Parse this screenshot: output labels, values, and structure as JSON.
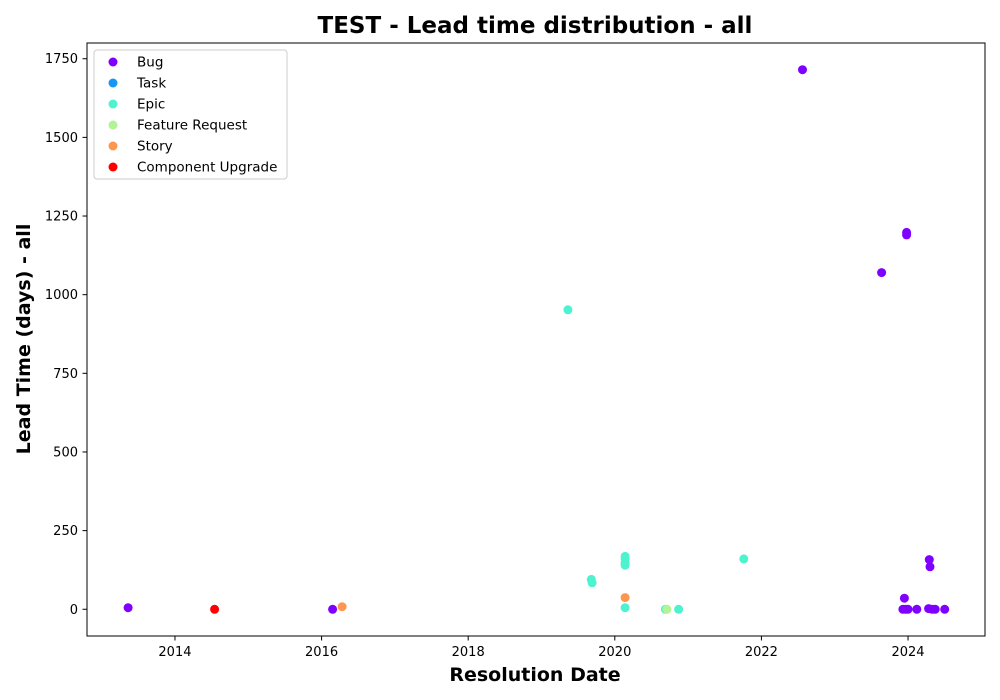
{
  "chart_data": {
    "type": "scatter",
    "title": "TEST - Lead time distribution - all",
    "xlabel": "Resolution Date",
    "ylabel": "Lead Time (days) - all",
    "xlim": [
      2012.8,
      2025.05
    ],
    "ylim": [
      -85,
      1800
    ],
    "x_ticks": [
      2014,
      2016,
      2018,
      2020,
      2022,
      2024
    ],
    "y_ticks": [
      0,
      250,
      500,
      750,
      1000,
      1250,
      1500,
      1750
    ],
    "grid": false,
    "legend_position": "upper-left",
    "series": [
      {
        "name": "Bug",
        "color": "#8000ff",
        "points": [
          [
            2013.36,
            5
          ],
          [
            2016.15,
            0
          ],
          [
            2022.56,
            1715
          ],
          [
            2023.64,
            1070
          ],
          [
            2023.98,
            1190
          ],
          [
            2023.98,
            1198
          ],
          [
            2023.95,
            35
          ],
          [
            2023.93,
            0
          ],
          [
            2023.97,
            0
          ],
          [
            2024.0,
            0
          ],
          [
            2024.12,
            0
          ],
          [
            2024.29,
            158
          ],
          [
            2024.3,
            135
          ],
          [
            2024.28,
            2
          ],
          [
            2024.33,
            0
          ],
          [
            2024.37,
            0
          ],
          [
            2024.5,
            0
          ]
        ]
      },
      {
        "name": "Task",
        "color": "#1996f3",
        "points": []
      },
      {
        "name": "Epic",
        "color": "#4df3ce",
        "points": [
          [
            2019.36,
            952
          ],
          [
            2019.68,
            95
          ],
          [
            2019.69,
            84
          ],
          [
            2020.14,
            168
          ],
          [
            2020.14,
            160
          ],
          [
            2020.14,
            147
          ],
          [
            2020.14,
            140
          ],
          [
            2020.14,
            5
          ],
          [
            2020.69,
            0
          ],
          [
            2020.87,
            0
          ],
          [
            2021.76,
            160
          ]
        ]
      },
      {
        "name": "Feature Request",
        "color": "#b3f396",
        "points": [
          [
            2020.71,
            0
          ]
        ]
      },
      {
        "name": "Story",
        "color": "#ff964f",
        "points": [
          [
            2016.28,
            8
          ],
          [
            2020.14,
            37
          ]
        ]
      },
      {
        "name": "Component Upgrade",
        "color": "#ff0000",
        "points": [
          [
            2014.54,
            0
          ]
        ]
      }
    ]
  }
}
